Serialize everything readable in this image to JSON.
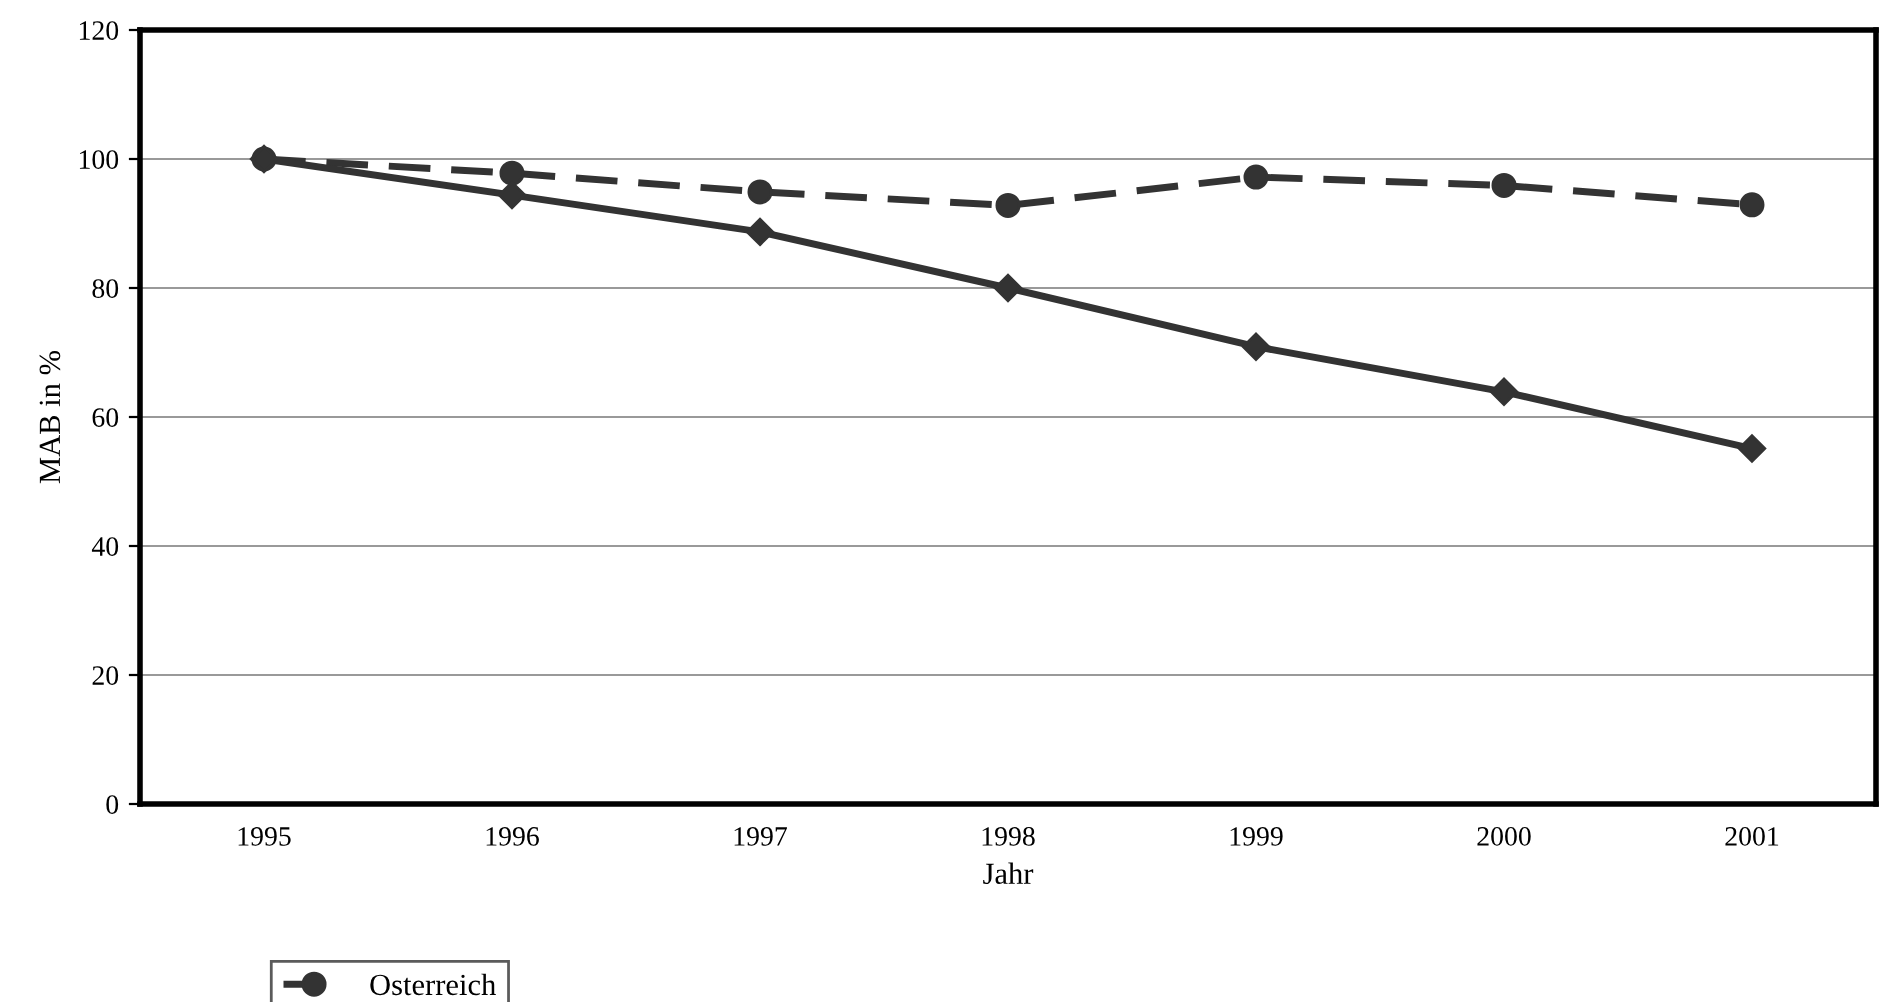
{
  "chart_data": {
    "type": "line",
    "xlabel": "Jahr",
    "ylabel": "MAB in %",
    "categories": [
      "1995",
      "1996",
      "1997",
      "1998",
      "1999",
      "2000",
      "2001"
    ],
    "series": [
      {
        "name": "Osterreich",
        "color": "#333333",
        "line_style": "dashed",
        "marker": "circle",
        "values": [
          100,
          97.8,
          94.9,
          92.8,
          97.2,
          95.9,
          92.9
        ]
      },
      {
        "color": "#333333",
        "line_style": "solid",
        "marker": "diamond",
        "values": [
          100,
          94.4,
          88.7,
          80,
          70.9,
          63.9,
          55.1
        ]
      }
    ],
    "ylim": [
      0,
      120
    ],
    "yticks": [
      0,
      20,
      40,
      60,
      80,
      100,
      120
    ],
    "grid": "y",
    "legend": "bottom"
  }
}
